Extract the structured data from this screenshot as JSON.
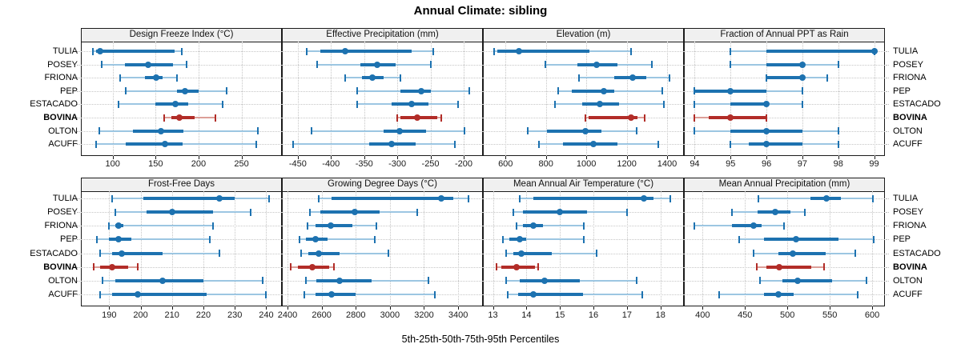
{
  "title": "Annual Climate: sibling",
  "caption": "5th-25th-50th-75th-95th Percentiles",
  "stations": [
    "TULIA",
    "POSEY",
    "FRIONA",
    "PEP",
    "ESTACADO",
    "BOVINA",
    "OLTON",
    "ACUFF"
  ],
  "highlighted_station": "BOVINA",
  "colors": {
    "series": "#1d72b0",
    "series_light": "#9cc6e2",
    "highlight": "#b22d28",
    "highlight_light": "#dc9f98",
    "grid": "#c6c6c6",
    "strip_bg": "#f0f0f0",
    "border": "#1b1b1b"
  },
  "chart_data": {
    "type": "dotplot-percentiles",
    "percentiles": [
      "5th",
      "25th",
      "50th",
      "75th",
      "95th"
    ],
    "legend_note": "red series = BOVINA (highlighted); whiskers 5th-95th, thick bar 25th-75th, dot = median",
    "grid": "dotted",
    "panels": [
      {
        "title": "Design Freeze Index (°C)",
        "row": 0,
        "col": 0,
        "xlim": [
          63,
          297
        ],
        "ticks": [
          100,
          150,
          200,
          250
        ],
        "values": [
          [
            77,
            81,
            85,
            172,
            180
          ],
          [
            87,
            114,
            141,
            170,
            186
          ],
          [
            109,
            138,
            151,
            158,
            175
          ],
          [
            115,
            175,
            184,
            200,
            233
          ],
          [
            107,
            150,
            173,
            188,
            228
          ],
          [
            160,
            168,
            178,
            195,
            220
          ],
          [
            84,
            124,
            156,
            182,
            269
          ],
          [
            81,
            115,
            161,
            181,
            267
          ]
        ]
      },
      {
        "title": "Effective Precipitation (mm)",
        "row": 0,
        "col": 1,
        "xlim": [
          -474,
          -171
        ],
        "ticks": [
          -450,
          -400,
          -350,
          -300,
          -250,
          -200
        ],
        "values": [
          [
            -436,
            -416,
            -379,
            -278,
            -246
          ],
          [
            -421,
            -356,
            -330,
            -302,
            -250
          ],
          [
            -379,
            -353,
            -337,
            -321,
            -295
          ],
          [
            -360,
            -295,
            -264,
            -249,
            -192
          ],
          [
            -361,
            -309,
            -278,
            -253,
            -208
          ],
          [
            -300,
            -295,
            -270,
            -240,
            -234
          ],
          [
            -429,
            -321,
            -297,
            -257,
            -199
          ],
          [
            -457,
            -343,
            -309,
            -273,
            -213
          ]
        ]
      },
      {
        "title": "Elevation (m)",
        "row": 0,
        "col": 2,
        "xlim": [
          488,
          1483
        ],
        "ticks": [
          600,
          800,
          1000,
          1200,
          1400
        ],
        "values": [
          [
            545,
            560,
            665,
            1015,
            1220
          ],
          [
            797,
            955,
            1050,
            1155,
            1325
          ],
          [
            965,
            1140,
            1230,
            1295,
            1410
          ],
          [
            860,
            930,
            1085,
            1140,
            1375
          ],
          [
            845,
            980,
            1065,
            1160,
            1385
          ],
          [
            995,
            1010,
            1220,
            1255,
            1290
          ],
          [
            710,
            805,
            995,
            1075,
            1250
          ],
          [
            765,
            885,
            1035,
            1155,
            1355
          ]
        ]
      },
      {
        "title": "Fraction of Annual PPT as Rain",
        "row": 0,
        "col": 3,
        "xlim": [
          93.7,
          99.3
        ],
        "ticks": [
          94,
          95,
          96,
          97,
          98,
          99
        ],
        "values": [
          [
            95,
            96,
            99,
            99,
            99
          ],
          [
            95,
            96,
            97,
            97,
            98
          ],
          [
            96,
            96,
            97,
            97,
            97.7
          ],
          [
            94,
            94,
            95,
            96,
            97
          ],
          [
            94,
            95,
            96,
            96,
            97
          ],
          [
            94,
            94.4,
            95,
            96,
            96
          ],
          [
            94,
            95,
            96,
            97,
            98
          ],
          [
            95,
            95.5,
            96,
            97,
            98
          ]
        ]
      },
      {
        "title": "Frost-Free Days",
        "row": 1,
        "col": 0,
        "xlim": [
          181,
          245
        ],
        "ticks": [
          190,
          200,
          210,
          220,
          230,
          240
        ],
        "values": [
          [
            191,
            201,
            225,
            230,
            241
          ],
          [
            192,
            202,
            210,
            223,
            235
          ],
          [
            190,
            192,
            193,
            194.5,
            223
          ],
          [
            186,
            190,
            193,
            197,
            222
          ],
          [
            187,
            191,
            194,
            207,
            225
          ],
          [
            185,
            187,
            191,
            196,
            199
          ],
          [
            188,
            192,
            207,
            220,
            239
          ],
          [
            187,
            191,
            199,
            221,
            240
          ]
        ]
      },
      {
        "title": "Growing Degree Days (°C)",
        "row": 1,
        "col": 1,
        "xlim": [
          2367,
          3545
        ],
        "ticks": [
          2400,
          2600,
          2800,
          3000,
          3200,
          3400
        ],
        "values": [
          [
            2585,
            2660,
            3300,
            3370,
            3460
          ],
          [
            2530,
            2590,
            2795,
            2940,
            3160
          ],
          [
            2515,
            2565,
            2655,
            2780,
            2920
          ],
          [
            2470,
            2510,
            2565,
            2635,
            2910
          ],
          [
            2480,
            2520,
            2585,
            2705,
            2990
          ],
          [
            2420,
            2460,
            2545,
            2645,
            2670
          ],
          [
            2510,
            2570,
            2705,
            2895,
            3225
          ],
          [
            2500,
            2565,
            2660,
            2800,
            3265
          ]
        ]
      },
      {
        "title": "Mean Annual Air Temperature (°C)",
        "row": 1,
        "col": 2,
        "xlim": [
          12.7,
          18.7
        ],
        "ticks": [
          13,
          14,
          15,
          16,
          17,
          18
        ],
        "values": [
          [
            13.8,
            14.2,
            17.5,
            17.8,
            18.3
          ],
          [
            13.6,
            13.9,
            15.0,
            15.8,
            17.0
          ],
          [
            13.7,
            13.9,
            14.2,
            14.5,
            15.7
          ],
          [
            13.3,
            13.5,
            13.8,
            14.0,
            15.7
          ],
          [
            13.4,
            13.6,
            13.85,
            14.75,
            16.1
          ],
          [
            13.1,
            13.25,
            13.7,
            14.25,
            14.35
          ],
          [
            13.4,
            13.8,
            14.55,
            15.6,
            17.3
          ],
          [
            13.45,
            13.75,
            14.2,
            15.7,
            17.45
          ]
        ]
      },
      {
        "title": "Mean Annual Precipitation (mm)",
        "row": 1,
        "col": 3,
        "xlim": [
          378,
          615
        ],
        "ticks": [
          400,
          450,
          500,
          550,
          600
        ],
        "values": [
          [
            466,
            527,
            546,
            563,
            601
          ],
          [
            435,
            465,
            486,
            504,
            521
          ],
          [
            390,
            435,
            460,
            470,
            496
          ],
          [
            443,
            472,
            510,
            560,
            602
          ],
          [
            460,
            489,
            506,
            545,
            580
          ],
          [
            464,
            475,
            490,
            528,
            543
          ],
          [
            468,
            494,
            512,
            553,
            593
          ],
          [
            420,
            472,
            489,
            507,
            583
          ]
        ]
      }
    ]
  }
}
